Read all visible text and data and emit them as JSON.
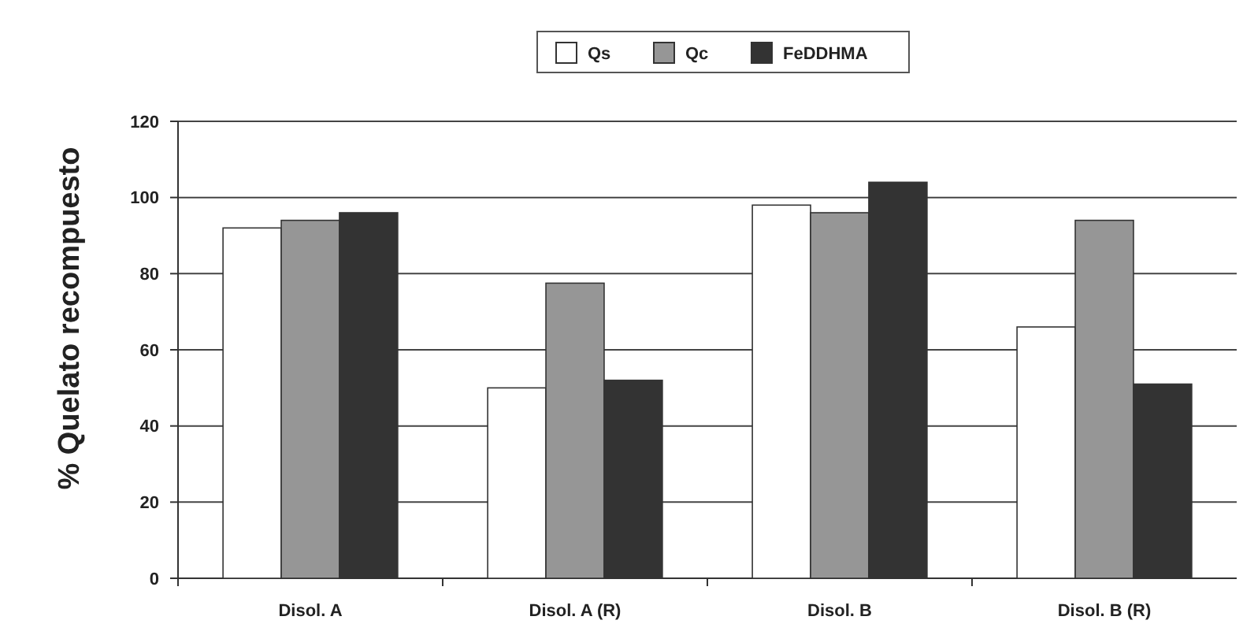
{
  "chart_data": {
    "type": "bar",
    "ylabel": "% Quelato recompuesto",
    "categories": [
      "Disol. A",
      "Disol. A (R)",
      "Disol. B",
      "Disol. B (R)"
    ],
    "series": [
      {
        "name": "Qs",
        "color": "#ffffff",
        "values": [
          92,
          50,
          98,
          66
        ]
      },
      {
        "name": "Qc",
        "color": "#969696",
        "values": [
          94,
          77.5,
          96,
          94
        ]
      },
      {
        "name": "FeDDHMA",
        "color": "#333333",
        "values": [
          96,
          52,
          104,
          51
        ]
      }
    ],
    "ylim": [
      0,
      120
    ],
    "yticks": [
      0,
      20,
      40,
      60,
      80,
      100,
      120
    ],
    "grid": "y",
    "legend": "top"
  }
}
